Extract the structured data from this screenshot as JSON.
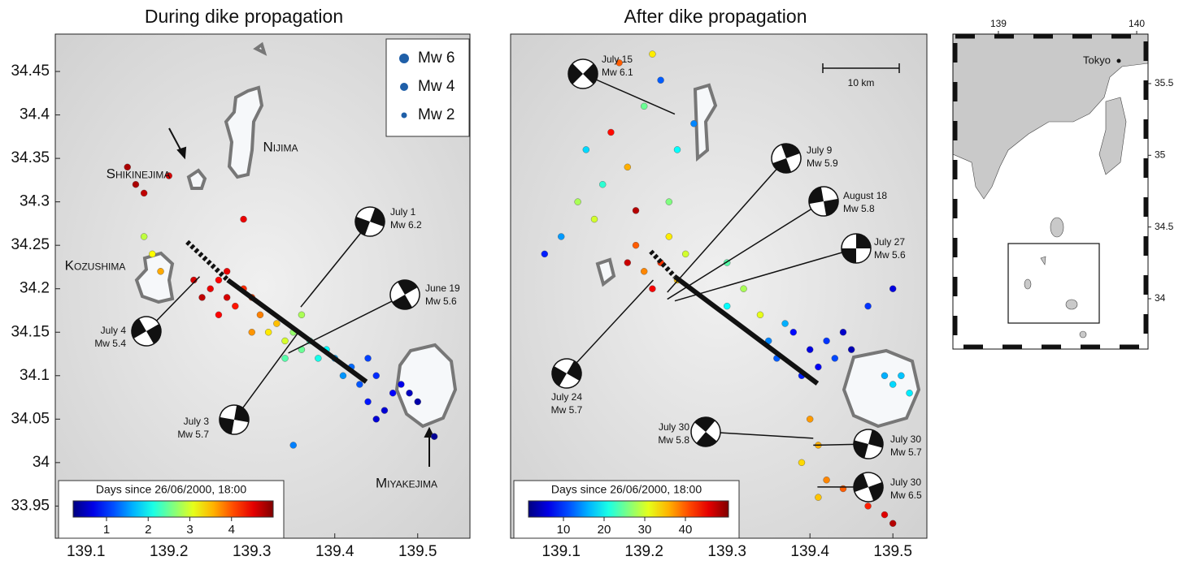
{
  "chart_data": [
    {
      "type": "scatter",
      "title": "During dike propagation",
      "xlim": [
        139.063,
        139.563
      ],
      "ylim": [
        33.913,
        34.493
      ],
      "xticks": [
        139.1,
        139.2,
        139.3,
        139.4,
        139.5
      ],
      "yticks": [
        33.95,
        34,
        34.05,
        34.1,
        34.15,
        34.2,
        34.25,
        34.3,
        34.35,
        34.4,
        34.45
      ],
      "legend": [
        "Mw 6",
        "Mw 4",
        "Mw 2"
      ],
      "colorbar": {
        "label": "Days since 26/06/2000, 18:00",
        "lim": [
          0.2,
          5
        ],
        "ticks": [
          1,
          2,
          3,
          4
        ]
      },
      "places": [
        "Shikinejima",
        "Nijima",
        "Kozushima",
        "Miyakejima"
      ],
      "dike": {
        "x": [
          139.222,
          139.271,
          139.438
        ],
        "y": [
          34.254,
          34.21,
          34.093
        ]
      },
      "mechanisms": [
        {
          "date": "July 1",
          "mw": "Mw 6.2",
          "x": 139.359,
          "y": 34.179
        },
        {
          "date": "June 19",
          "mw": "Mw 5.6",
          "x": 139.344,
          "y": 34.126
        },
        {
          "date": "July 4",
          "mw": "Mw 5.4",
          "x": 139.237,
          "y": 34.214
        },
        {
          "date": "July 3",
          "mw": "Mw 5.7",
          "x": 139.357,
          "y": 34.151
        }
      ],
      "points": {
        "x": [
          139.25,
          139.27,
          139.26,
          139.28,
          139.24,
          139.29,
          139.26,
          139.23,
          139.27,
          139.3,
          139.16,
          139.17,
          139.2,
          139.29,
          139.15,
          139.31,
          139.33,
          139.32,
          139.3,
          139.34,
          139.18,
          139.19,
          139.17,
          139.35,
          139.36,
          139.37,
          139.38,
          139.36,
          139.34,
          139.39,
          139.41,
          139.43,
          139.45,
          139.47,
          139.44,
          139.42,
          139.48,
          139.46,
          139.49,
          139.4,
          139.44,
          139.5,
          139.45,
          139.52,
          139.35
        ],
        "y": [
          34.2,
          34.19,
          34.21,
          34.18,
          34.19,
          34.2,
          34.17,
          34.21,
          34.22,
          34.19,
          34.32,
          34.31,
          34.33,
          34.28,
          34.34,
          34.17,
          34.16,
          34.15,
          34.15,
          34.14,
          34.24,
          34.22,
          34.26,
          34.15,
          34.13,
          34.14,
          34.12,
          34.17,
          34.12,
          34.13,
          34.1,
          34.09,
          34.1,
          34.08,
          34.07,
          34.11,
          34.09,
          34.06,
          34.08,
          34.12,
          34.12,
          34.07,
          34.05,
          34.03,
          34.02
        ],
        "days": [
          4.5,
          4.6,
          4.4,
          4.3,
          4.7,
          4.2,
          4.4,
          4.6,
          4.5,
          4.1,
          4.8,
          4.7,
          4.6,
          4.5,
          4.8,
          3.8,
          3.5,
          3.3,
          3.7,
          3.0,
          3.2,
          3.6,
          2.9,
          2.7,
          2.5,
          2.3,
          2.1,
          2.8,
          2.4,
          2.0,
          1.5,
          1.2,
          1.0,
          0.8,
          0.9,
          1.3,
          0.7,
          0.6,
          0.5,
          1.6,
          1.1,
          0.4,
          0.6,
          0.3,
          1.4
        ]
      }
    },
    {
      "type": "scatter",
      "title": "After dike propagation",
      "xlim": [
        139.039,
        139.541
      ],
      "ylim": [
        33.913,
        34.493
      ],
      "xticks": [
        139.1,
        139.2,
        139.3,
        139.4,
        139.5
      ],
      "scale_label": "10 km",
      "colorbar": {
        "label": "Days since 26/06/2000, 18:00",
        "lim": [
          1.4,
          50.6
        ],
        "ticks": [
          10,
          20,
          30,
          40
        ]
      },
      "dike": {
        "x": [
          139.208,
          139.237,
          139.409
        ],
        "y": [
          34.243,
          34.214,
          34.091
        ]
      },
      "mechanisms": [
        {
          "date": "July 15",
          "mw": "Mw 6.1",
          "x": 139.237,
          "y": 34.401
        },
        {
          "date": "July 9",
          "mw": "Mw 5.9",
          "x": 139.228,
          "y": 34.196
        },
        {
          "date": "August 18",
          "mw": "Mw 5.8",
          "x": 139.228,
          "y": 34.188
        },
        {
          "date": "July 27",
          "mw": "Mw 5.6",
          "x": 139.237,
          "y": 34.186
        },
        {
          "date": "July 24",
          "mw": "Mw 5.7",
          "x": 139.211,
          "y": 34.21
        },
        {
          "date": "July 30",
          "mw": "Mw 5.8",
          "x": 139.404,
          "y": 34.028
        },
        {
          "date": "July 30",
          "mw": "Mw 5.7",
          "x": 139.404,
          "y": 34.02
        },
        {
          "date": "July 30",
          "mw": "Mw 6.5",
          "x": 139.409,
          "y": 33.972
        }
      ],
      "points": {
        "x": [
          139.38,
          139.4,
          139.42,
          139.36,
          139.44,
          139.39,
          139.41,
          139.35,
          139.43,
          139.37,
          139.45,
          139.2,
          139.22,
          139.24,
          139.19,
          139.21,
          139.23,
          139.18,
          139.25,
          139.12,
          139.15,
          139.18,
          139.13,
          139.16,
          139.2,
          139.22,
          139.17,
          139.21,
          139.1,
          139.08,
          139.14,
          139.19,
          139.24,
          139.26,
          139.23,
          139.5,
          139.51,
          139.52,
          139.49,
          139.4,
          139.41,
          139.39,
          139.42,
          139.44,
          139.47,
          139.49,
          139.5,
          139.41,
          139.3,
          139.32,
          139.34,
          139.3,
          139.47,
          139.5
        ],
        "y": [
          34.15,
          34.13,
          34.14,
          34.12,
          34.15,
          34.1,
          34.11,
          34.14,
          34.12,
          34.16,
          34.13,
          34.22,
          34.23,
          34.21,
          34.25,
          34.2,
          34.26,
          34.23,
          34.24,
          34.3,
          34.32,
          34.34,
          34.36,
          34.38,
          34.41,
          34.44,
          34.46,
          34.47,
          34.26,
          34.24,
          34.28,
          34.29,
          34.36,
          34.39,
          34.3,
          34.09,
          34.1,
          34.08,
          34.1,
          34.05,
          34.02,
          34.0,
          33.98,
          33.97,
          33.95,
          33.94,
          33.93,
          33.96,
          34.18,
          34.2,
          34.17,
          34.23,
          34.18,
          34.2
        ],
        "days": [
          8,
          6,
          10,
          12,
          5,
          9,
          7,
          14,
          11,
          16,
          4,
          38,
          42,
          35,
          40,
          45,
          33,
          47,
          30,
          28,
          22,
          36,
          18,
          44,
          25,
          12,
          40,
          33,
          15,
          9,
          30,
          48,
          20,
          14,
          26,
          18,
          17,
          19,
          16,
          37,
          36,
          34,
          38,
          40,
          43,
          46,
          48,
          35,
          20,
          28,
          31,
          24,
          10,
          6
        ]
      }
    },
    {
      "type": "map",
      "xlim": [
        138.671,
        140.082
      ],
      "ylim": [
        33.649,
        35.845
      ],
      "xticks": [
        139,
        140
      ],
      "yticks": [
        34,
        34.5,
        35,
        35.5
      ],
      "city": "Tokyo"
    }
  ]
}
